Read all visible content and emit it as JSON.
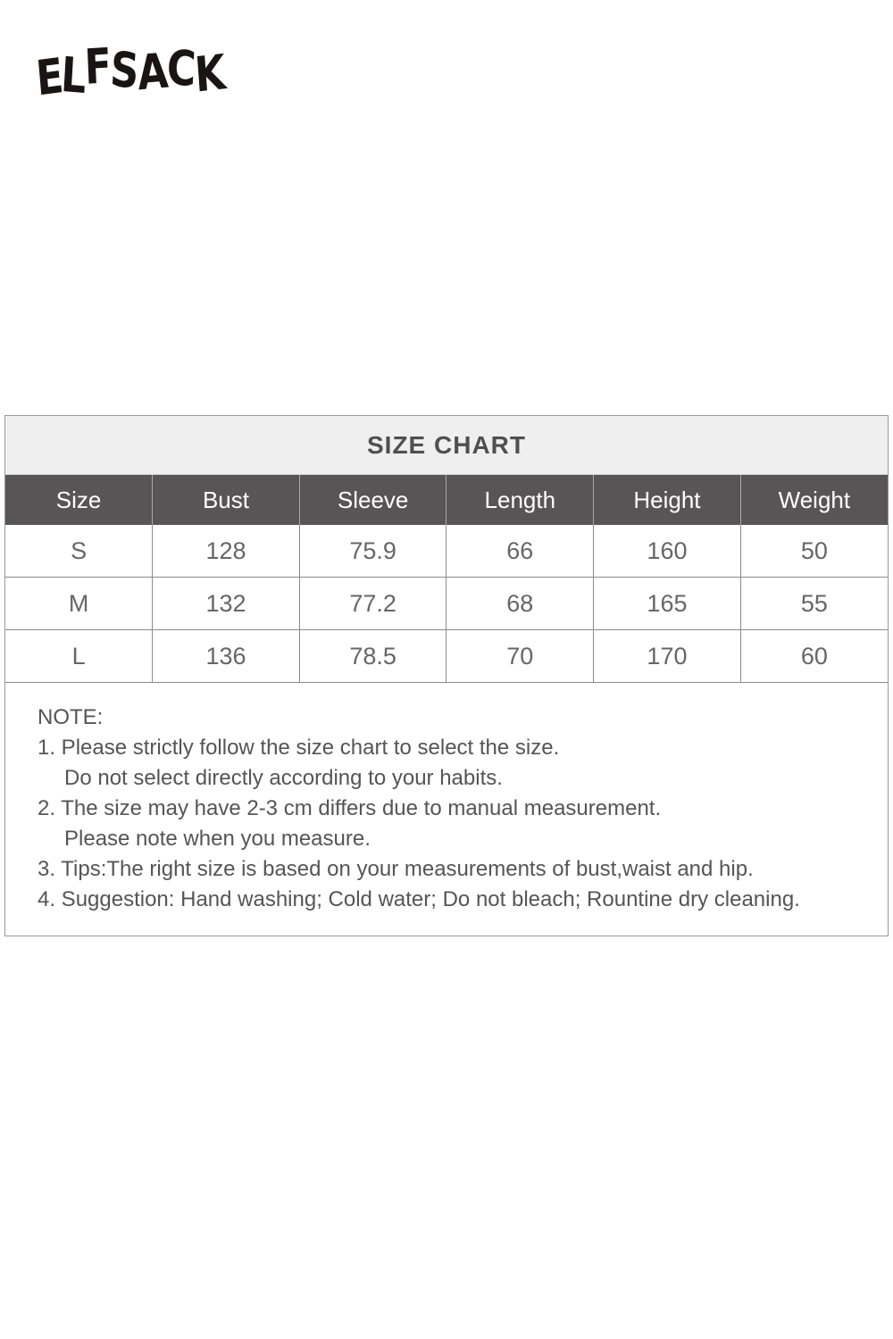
{
  "brand": {
    "logo_text": "ELFSACK"
  },
  "size_chart": {
    "title": "SIZE CHART",
    "columns": [
      "Size",
      "Bust",
      "Sleeve",
      "Length",
      "Height",
      "Weight"
    ],
    "rows": [
      [
        "S",
        "128",
        "75.9",
        "66",
        "160",
        "50"
      ],
      [
        "M",
        "132",
        "77.2",
        "68",
        "165",
        "55"
      ],
      [
        "L",
        "136",
        "78.5",
        "70",
        "170",
        "60"
      ]
    ],
    "colors": {
      "header_bg": "#595556",
      "title_bg": "#efefef"
    }
  },
  "notes": {
    "heading": "NOTE:",
    "lines": [
      "1. Please strictly follow the size chart to select the size.",
      "Do not select directly according to your habits.",
      "2. The size may have 2-3 cm differs due to manual measurement.",
      "Please note when you measure.",
      "3. Tips:The right size is based on your measurements of bust,waist and hip.",
      "4. Suggestion: Hand washing; Cold water; Do not bleach; Rountine dry cleaning."
    ]
  }
}
